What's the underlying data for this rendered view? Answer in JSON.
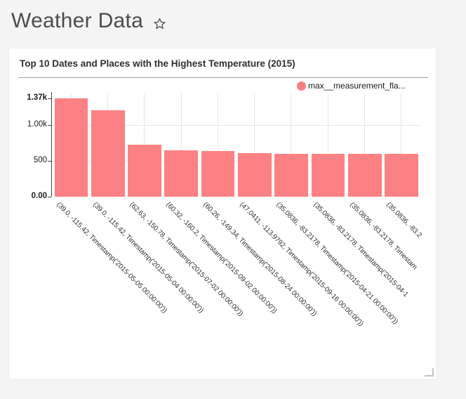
{
  "page": {
    "title": "Weather Data",
    "favorite_icon": "star-outline"
  },
  "card": {
    "title": "Top 10 Dates and Places with the Highest Temperature (2015)"
  },
  "legend": {
    "label": "max__measurement_fla...",
    "color": "#fb7e84"
  },
  "colors": {
    "bar": "#fb8184",
    "page_background": "#f4f4f4",
    "card_background": "#ffffff",
    "gridline": "#e6e6e6",
    "axis": "#444444"
  },
  "chart_data": {
    "type": "bar",
    "title": "Top 10 Dates and Places with the Highest Temperature (2015)",
    "legend": [
      "max__measurement_fla..."
    ],
    "legend_position": "top-right",
    "grid": true,
    "tick_angle": 45,
    "ylim": [
      0,
      1370
    ],
    "yticks": [
      {
        "label": "0.00",
        "value": 0,
        "bold": true
      },
      {
        "label": "500",
        "value": 500,
        "bold": false
      },
      {
        "label": "1.00k",
        "value": 1000,
        "bold": false
      },
      {
        "label": "1.37k",
        "value": 1370,
        "bold": true
      }
    ],
    "categories": [
      "(39.0, -115.42, Timestamp('2015-05-05 00:00:00'))",
      "(39.0, -115.42, Timestamp('2015-05-04 00:00:00'))",
      "(62.63, -150.78, Timestamp('2015-07-02 00:00:00'))",
      "(60.32, -160.2, Timestamp('2015-09-02 00:00:00'))",
      "(60.26, -149.34, Timestamp('2015-08-24 00:00:00'))",
      "(47.0411, -113.9792, Timestamp('2015-09-16 00:00:00'))",
      "(35.0836, -83.2178, Timestamp('2015-04-21 00:00:00'))",
      "(35.0836, -83.2178, Timestamp('2015-04-1",
      "(35.0836, -83.2178, Timestam",
      "(35.0836, -83.2"
    ],
    "values": [
      1370,
      1205,
      727,
      645,
      634,
      608,
      600,
      600,
      600,
      600
    ]
  }
}
